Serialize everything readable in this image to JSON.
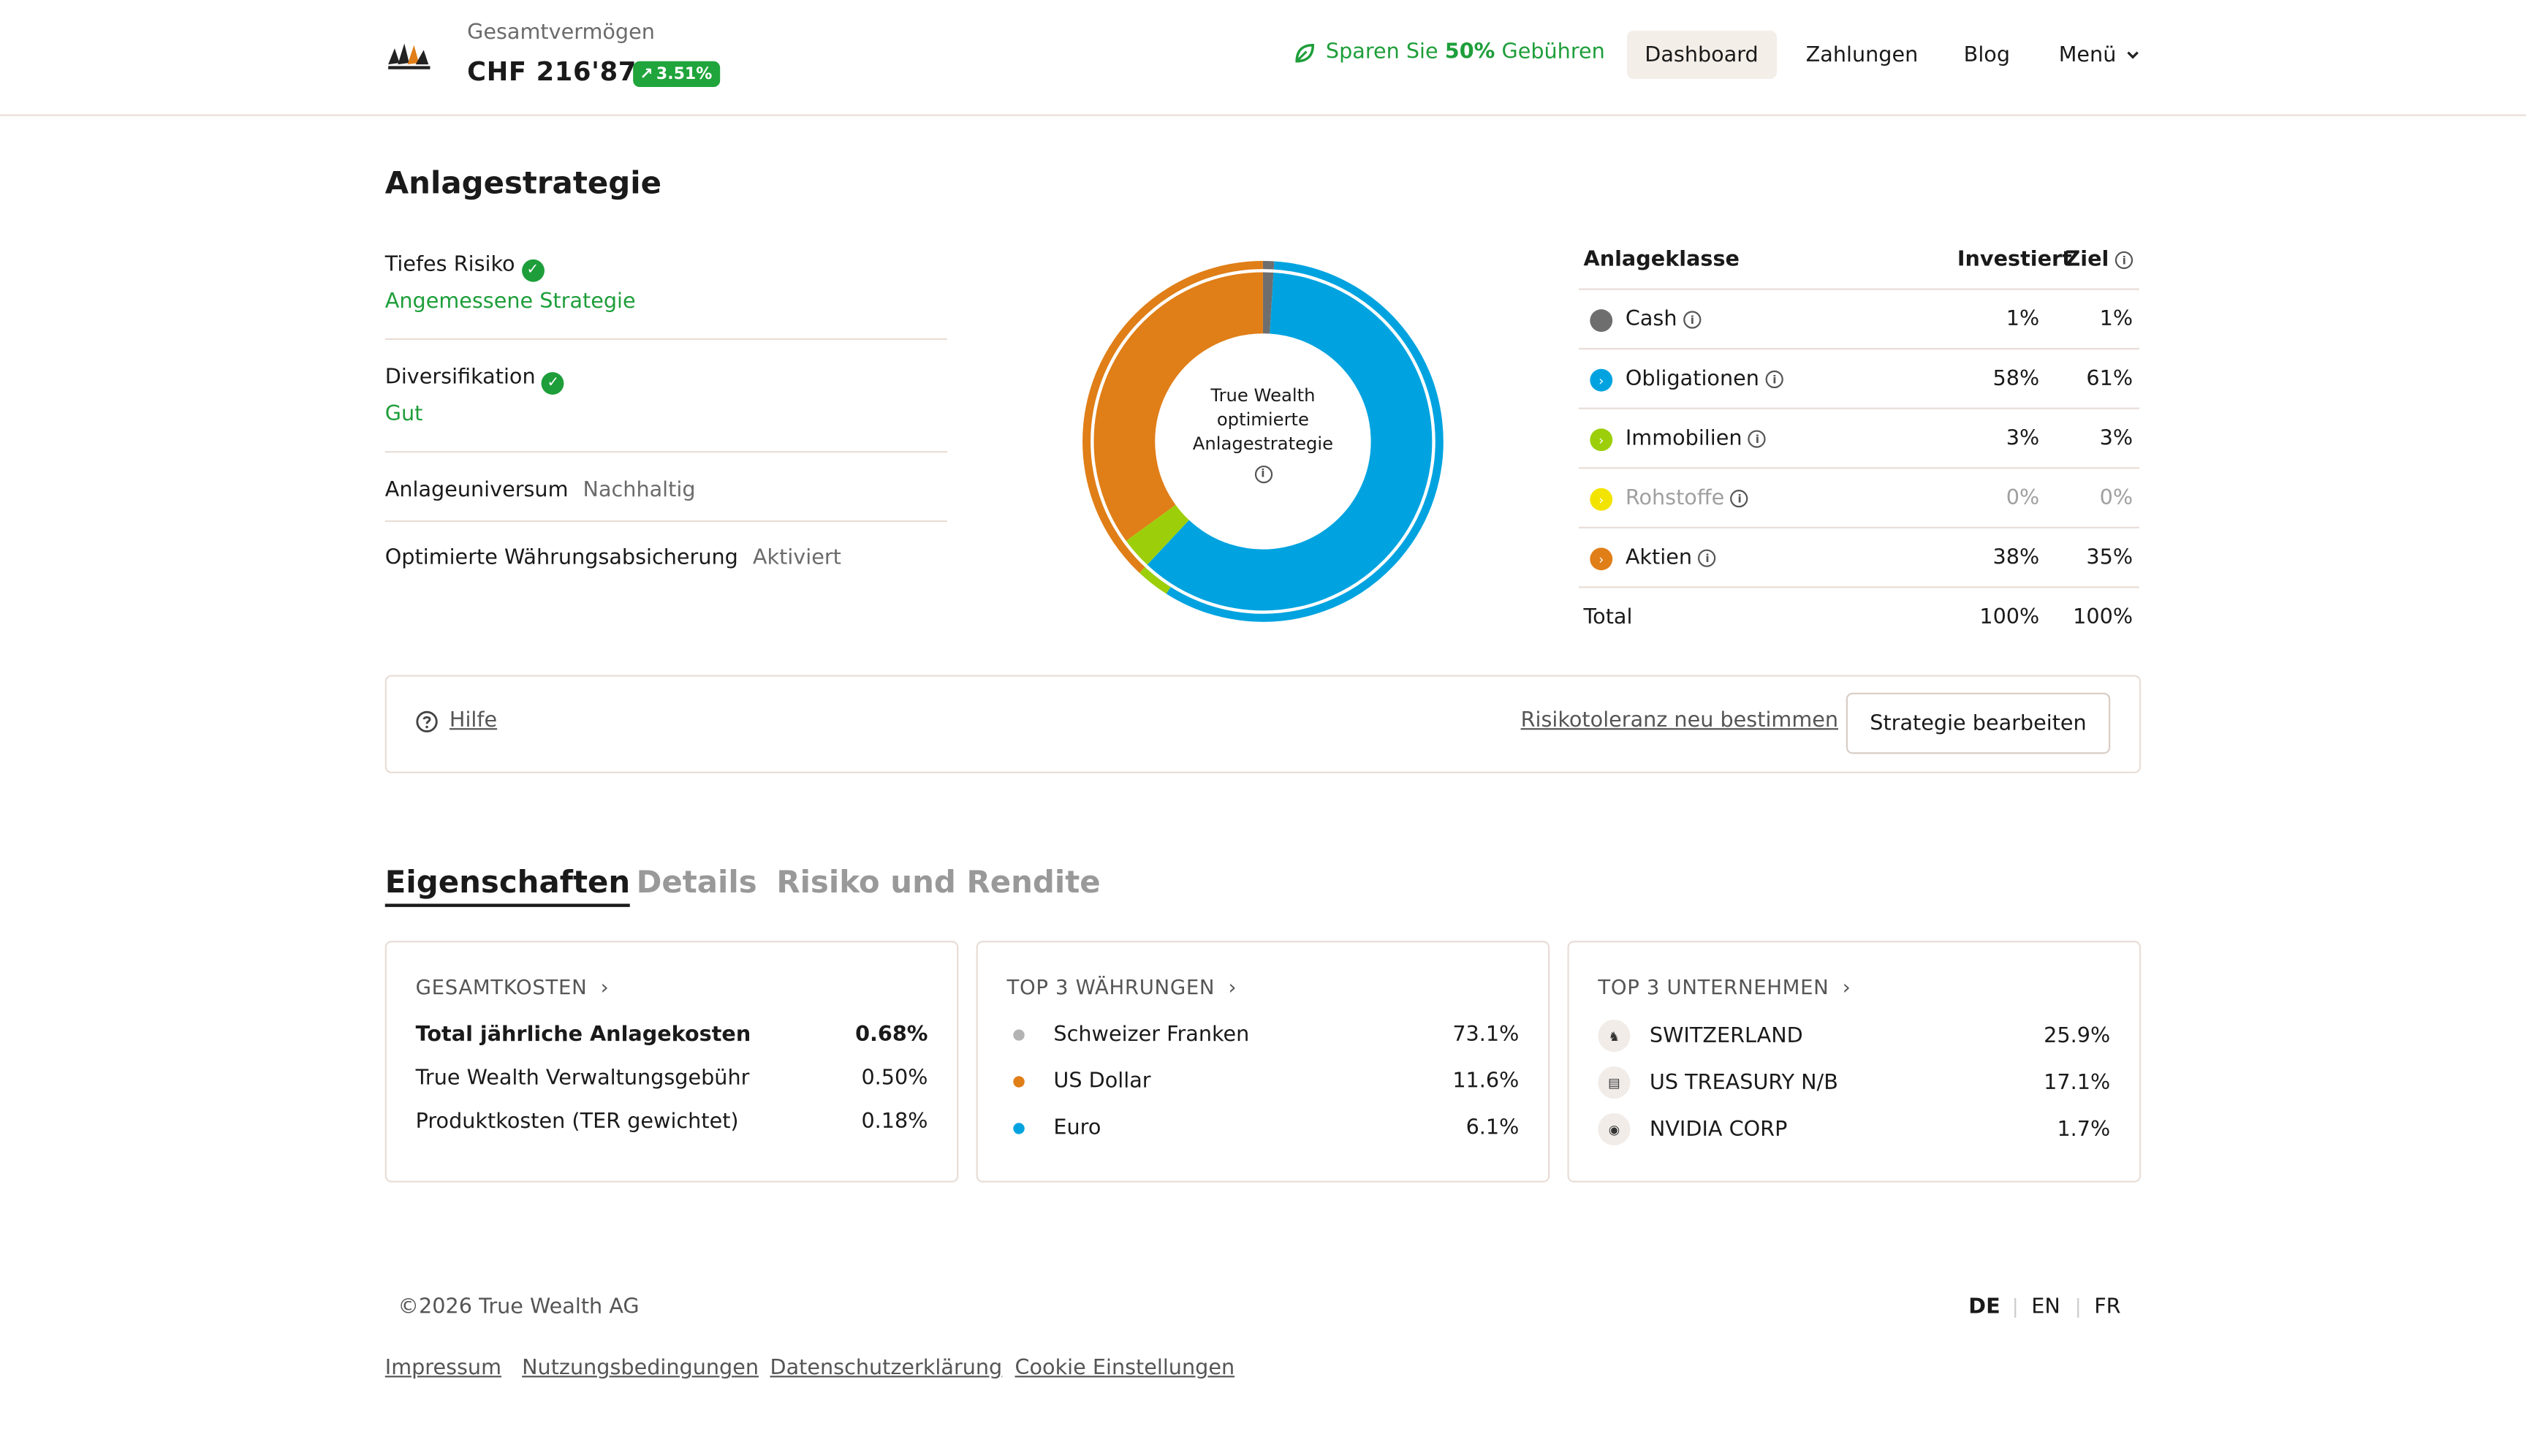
{
  "header": {
    "total_label": "Gesamtvermögen",
    "total_value": "CHF 216'877",
    "change_badge": "3.51%",
    "save_prefix": "Sparen Sie ",
    "save_bold": "50%",
    "save_suffix": " Gebühren",
    "nav": [
      "Dashboard",
      "Zahlungen",
      "Blog",
      "Menü"
    ]
  },
  "strategy": {
    "title": "Anlagestrategie",
    "props": [
      {
        "name": "Tiefes Risiko",
        "value": "Angemessene Strategie"
      },
      {
        "name": "Diversifikation",
        "value": "Gut"
      },
      {
        "name": "Anlageuniversum",
        "value": "Nachhaltig"
      },
      {
        "name": "Optimierte Währungsabsicherung",
        "value": "Aktiviert"
      }
    ],
    "donut_center": [
      "True Wealth",
      "optimierte",
      "Anlagestrategie"
    ],
    "table_headers": {
      "class": "Anlageklasse",
      "invested": "Investiert",
      "target": "Ziel"
    },
    "rows": [
      {
        "name": "Cash",
        "invested": "1%",
        "target": "1%",
        "color": "#6e6e6e"
      },
      {
        "name": "Obligationen",
        "invested": "58%",
        "target": "61%",
        "color": "#00a3e0"
      },
      {
        "name": "Immobilien",
        "invested": "3%",
        "target": "3%",
        "color": "#9ccf0a"
      },
      {
        "name": "Rohstoffe",
        "invested": "0%",
        "target": "0%",
        "color": "#f2e300"
      },
      {
        "name": "Aktien",
        "invested": "38%",
        "target": "35%",
        "color": "#e07e17"
      }
    ],
    "total": {
      "label": "Total",
      "invested": "100%",
      "target": "100%"
    }
  },
  "actions": {
    "help": "Hilfe",
    "risk": "Risikotoleranz neu bestimmen",
    "edit": "Strategie bearbeiten"
  },
  "tabs": [
    "Eigenschaften",
    "Details",
    "Risiko und Rendite"
  ],
  "cards": {
    "costs": {
      "title": "GESAMTKOSTEN",
      "rows": [
        {
          "label": "Total jährliche Anlagekosten",
          "value": "0.68%"
        },
        {
          "label": "True Wealth Verwaltungsgebühr",
          "value": "0.50%"
        },
        {
          "label": "Produktkosten (TER gewichtet)",
          "value": "0.18%"
        }
      ]
    },
    "currencies": {
      "title": "TOP 3 WÄHRUNGEN",
      "rows": [
        {
          "label": "Schweizer Franken",
          "value": "73.1%",
          "color": "#b3b3b3"
        },
        {
          "label": "US Dollar",
          "value": "11.6%",
          "color": "#e07e17"
        },
        {
          "label": "Euro",
          "value": "6.1%",
          "color": "#00a3e0"
        }
      ]
    },
    "companies": {
      "title": "TOP 3 UNTERNEHMEN",
      "rows": [
        {
          "label": "SWITZERLAND",
          "value": "25.9%"
        },
        {
          "label": "US TREASURY N/B",
          "value": "17.1%"
        },
        {
          "label": "NVIDIA CORP",
          "value": "1.7%"
        }
      ]
    }
  },
  "footer": {
    "copyright": "©2026 True Wealth AG",
    "languages": [
      "DE",
      "EN",
      "FR"
    ],
    "links": [
      "Impressum",
      "Nutzungsbedingungen",
      "Datenschutzerklärung",
      "Cookie Einstellungen"
    ]
  }
}
